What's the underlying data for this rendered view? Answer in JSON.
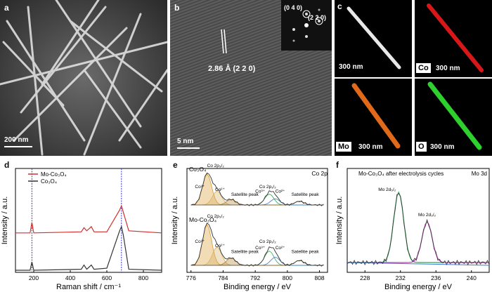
{
  "panels": {
    "a": {
      "label": "a",
      "scale": "200 nm"
    },
    "b": {
      "label": "b",
      "scale": "5 nm",
      "d_spacing": "2.86 Å (2 2 0)",
      "fft_labels": [
        "(0 4 0)",
        "(2 2 0)"
      ]
    },
    "c": {
      "label": "c",
      "tiles": [
        {
          "element": "",
          "scale": "300 nm",
          "color": "#e0e0e0"
        },
        {
          "element": "Co",
          "scale": "300 nm",
          "color": "#d81818"
        },
        {
          "element": "Mo",
          "scale": "300 nm",
          "color": "#e06a1a"
        },
        {
          "element": "O",
          "scale": "300 nm",
          "color": "#2ed02e"
        }
      ]
    },
    "d": {
      "label": "d"
    },
    "e": {
      "label": "e",
      "corner": "Co 2p"
    },
    "f": {
      "label": "f",
      "corner": "Mo 3d"
    }
  },
  "chart_data": [
    {
      "type": "line",
      "panel": "d",
      "xlabel": "Raman shift / cm⁻¹",
      "ylabel": "Intensity / a.u.",
      "xlim": [
        100,
        900
      ],
      "xticks": [
        200,
        400,
        600,
        800
      ],
      "legend": [
        "Mo-Co₃O₄",
        "Co₃O₄"
      ],
      "series": [
        {
          "name": "Mo-Co₃O₄",
          "color": "#d32f2f",
          "points": [
            [
              100,
              0.38
            ],
            [
              180,
              0.38
            ],
            [
              190,
              0.48
            ],
            [
              200,
              0.38
            ],
            [
              460,
              0.39
            ],
            [
              475,
              0.43
            ],
            [
              490,
              0.4
            ],
            [
              515,
              0.44
            ],
            [
              530,
              0.39
            ],
            [
              600,
              0.39
            ],
            [
              670,
              0.6
            ],
            [
              680,
              0.64
            ],
            [
              690,
              0.58
            ],
            [
              720,
              0.4
            ],
            [
              900,
              0.38
            ]
          ]
        },
        {
          "name": "Co₃O₄",
          "color": "#333333",
          "points": [
            [
              100,
              0.02
            ],
            [
              180,
              0.02
            ],
            [
              190,
              0.1
            ],
            [
              200,
              0.02
            ],
            [
              460,
              0.03
            ],
            [
              475,
              0.07
            ],
            [
              490,
              0.03
            ],
            [
              515,
              0.07
            ],
            [
              530,
              0.03
            ],
            [
              600,
              0.04
            ],
            [
              670,
              0.4
            ],
            [
              680,
              0.44
            ],
            [
              690,
              0.36
            ],
            [
              720,
              0.03
            ],
            [
              900,
              0.02
            ]
          ]
        }
      ],
      "markers": [
        190,
        680
      ]
    },
    {
      "type": "line",
      "panel": "e",
      "xlabel": "Binding energy / eV",
      "ylabel": "Intensity / a.u.",
      "xlim": [
        775,
        810
      ],
      "xticks": [
        776,
        784,
        792,
        800,
        808
      ],
      "annotations_top": [
        "Co₃O₄",
        "Co 2p₃/₂",
        "Co³⁺",
        "Co²⁺",
        "Satellite peak",
        "Co 2p₁/₂",
        "Co³⁺",
        "Co²⁺",
        "Satellite peak"
      ],
      "annotations_bottom": [
        "Mo-Co₃O₄",
        "Co 2p₃/₂",
        "Co³⁺",
        "Co²⁺",
        "Satellite peak",
        "Co 2p₁/₂",
        "Co³⁺",
        "Co²⁺",
        "Satellite peak"
      ]
    },
    {
      "type": "line",
      "panel": "f",
      "title": "Mo-Co₃O₄ after electrolysis cycles",
      "xlabel": "Binding energy / eV",
      "ylabel": "Intensity / a.u.",
      "xlim": [
        226,
        242
      ],
      "xticks": [
        228,
        232,
        236,
        240
      ],
      "peak_labels": [
        "Mo 2d₅/₂",
        "Mo 2d₃/₂"
      ]
    }
  ]
}
